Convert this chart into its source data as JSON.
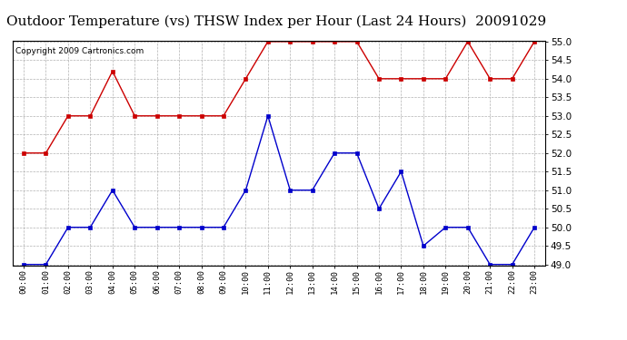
{
  "title": "Outdoor Temperature (vs) THSW Index per Hour (Last 24 Hours)  20091029",
  "copyright": "Copyright 2009 Cartronics.com",
  "hours": [
    "00:00",
    "01:00",
    "02:00",
    "03:00",
    "04:00",
    "05:00",
    "06:00",
    "07:00",
    "08:00",
    "09:00",
    "10:00",
    "11:00",
    "12:00",
    "13:00",
    "14:00",
    "15:00",
    "16:00",
    "17:00",
    "18:00",
    "19:00",
    "20:00",
    "21:00",
    "22:00",
    "23:00"
  ],
  "temp": [
    49.0,
    49.0,
    50.0,
    50.0,
    51.0,
    50.0,
    50.0,
    50.0,
    50.0,
    50.0,
    51.0,
    53.0,
    51.0,
    51.0,
    52.0,
    52.0,
    50.5,
    51.5,
    49.5,
    50.0,
    50.0,
    49.0,
    49.0,
    50.0
  ],
  "thsw": [
    52.0,
    52.0,
    53.0,
    53.0,
    54.2,
    53.0,
    53.0,
    53.0,
    53.0,
    53.0,
    54.0,
    55.0,
    55.0,
    55.0,
    55.0,
    55.0,
    54.0,
    54.0,
    54.0,
    54.0,
    55.0,
    54.0,
    54.0,
    55.0
  ],
  "temp_color": "#0000cc",
  "thsw_color": "#cc0000",
  "bg_color": "#ffffff",
  "grid_color": "#aaaaaa",
  "ylim_min": 49.0,
  "ylim_max": 55.0,
  "ytick_step": 0.5,
  "title_fontsize": 11,
  "copyright_fontsize": 6.5,
  "marker": "s",
  "markersize": 2.5,
  "linewidth": 1.0
}
